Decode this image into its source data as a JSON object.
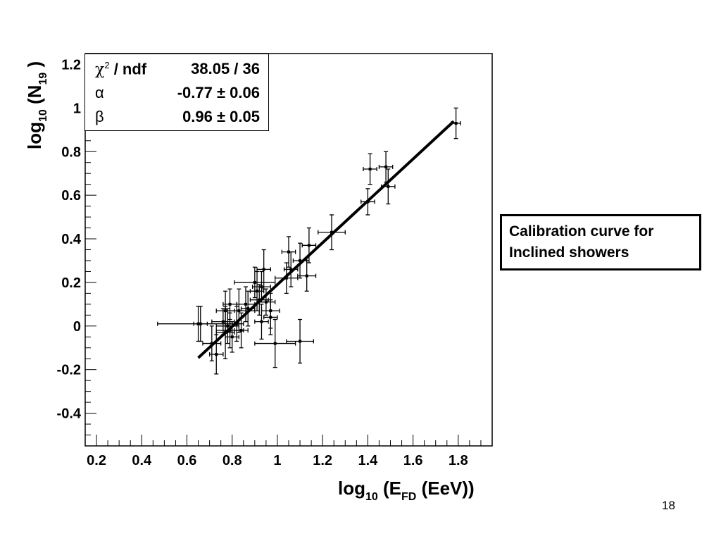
{
  "chart_data": {
    "type": "scatter",
    "xlabel": "log10 (EFD (EeV))",
    "ylabel": "log10 (N19 )",
    "xlim": [
      0.15,
      1.95
    ],
    "ylim": [
      -0.55,
      1.25
    ],
    "x_ticks": [
      0.2,
      0.4,
      0.6,
      0.8,
      1,
      1.2,
      1.4,
      1.6,
      1.8
    ],
    "x_tick_labels": [
      "0.2",
      "0.4",
      "0.6",
      "0.8",
      "1",
      "1.2",
      "1.4",
      "1.6",
      "1.8"
    ],
    "y_ticks": [
      -0.4,
      -0.2,
      0,
      0.2,
      0.4,
      0.6,
      0.8,
      1,
      1.2
    ],
    "y_tick_labels": [
      "-0.4",
      "-0.2",
      "0",
      "0.2",
      "0.4",
      "0.6",
      "0.8",
      "1",
      "1.2"
    ],
    "grid": false,
    "series": [
      {
        "points": [
          {
            "x": 0.65,
            "y": 0.01,
            "ex": 0.18,
            "ey": 0.08
          },
          {
            "x": 0.66,
            "y": 0.01,
            "ex": 0.03,
            "ey": 0.08
          },
          {
            "x": 0.71,
            "y": -0.08,
            "ex": 0.04,
            "ey": 0.08
          },
          {
            "x": 0.73,
            "y": -0.13,
            "ex": 0.03,
            "ey": 0.09
          },
          {
            "x": 0.76,
            "y": 0.02,
            "ex": 0.05,
            "ey": 0.06
          },
          {
            "x": 0.77,
            "y": -0.03,
            "ex": 0.04,
            "ey": 0.12
          },
          {
            "x": 0.77,
            "y": 0.07,
            "ex": 0.04,
            "ey": 0.09
          },
          {
            "x": 0.78,
            "y": 0.0,
            "ex": 0.05,
            "ey": 0.08
          },
          {
            "x": 0.79,
            "y": -0.02,
            "ex": 0.06,
            "ey": 0.08
          },
          {
            "x": 0.79,
            "y": 0.1,
            "ex": 0.03,
            "ey": 0.07
          },
          {
            "x": 0.8,
            "y": -0.05,
            "ex": 0.03,
            "ey": 0.07
          },
          {
            "x": 0.82,
            "y": 0.01,
            "ex": 0.03,
            "ey": 0.08
          },
          {
            "x": 0.83,
            "y": 0.07,
            "ex": 0.07,
            "ey": 0.1
          },
          {
            "x": 0.84,
            "y": -0.02,
            "ex": 0.03,
            "ey": 0.08
          },
          {
            "x": 0.86,
            "y": 0.1,
            "ex": 0.04,
            "ey": 0.08
          },
          {
            "x": 0.87,
            "y": 0.08,
            "ex": 0.03,
            "ey": 0.08
          },
          {
            "x": 0.9,
            "y": 0.2,
            "ex": 0.09,
            "ey": 0.07
          },
          {
            "x": 0.91,
            "y": 0.16,
            "ex": 0.03,
            "ey": 0.09
          },
          {
            "x": 0.92,
            "y": 0.12,
            "ex": 0.04,
            "ey": 0.07
          },
          {
            "x": 0.93,
            "y": 0.02,
            "ex": 0.03,
            "ey": 0.08
          },
          {
            "x": 0.93,
            "y": 0.18,
            "ex": 0.04,
            "ey": 0.07
          },
          {
            "x": 0.94,
            "y": 0.26,
            "ex": 0.03,
            "ey": 0.09
          },
          {
            "x": 0.95,
            "y": 0.11,
            "ex": 0.04,
            "ey": 0.06
          },
          {
            "x": 0.97,
            "y": 0.04,
            "ex": 0.03,
            "ey": 0.08
          },
          {
            "x": 0.97,
            "y": 0.07,
            "ex": 0.04,
            "ey": 0.08
          },
          {
            "x": 0.99,
            "y": -0.08,
            "ex": 0.09,
            "ey": 0.11
          },
          {
            "x": 1.04,
            "y": 0.22,
            "ex": 0.05,
            "ey": 0.07
          },
          {
            "x": 1.05,
            "y": 0.34,
            "ex": 0.03,
            "ey": 0.07
          },
          {
            "x": 1.06,
            "y": 0.26,
            "ex": 0.03,
            "ey": 0.08
          },
          {
            "x": 1.1,
            "y": -0.07,
            "ex": 0.06,
            "ey": 0.1
          },
          {
            "x": 1.1,
            "y": 0.3,
            "ex": 0.03,
            "ey": 0.08
          },
          {
            "x": 1.13,
            "y": 0.23,
            "ex": 0.04,
            "ey": 0.07
          },
          {
            "x": 1.14,
            "y": 0.37,
            "ex": 0.03,
            "ey": 0.08
          },
          {
            "x": 1.24,
            "y": 0.43,
            "ex": 0.06,
            "ey": 0.08
          },
          {
            "x": 1.4,
            "y": 0.57,
            "ex": 0.03,
            "ey": 0.06
          },
          {
            "x": 1.41,
            "y": 0.72,
            "ex": 0.03,
            "ey": 0.07
          },
          {
            "x": 1.48,
            "y": 0.73,
            "ex": 0.03,
            "ey": 0.07
          },
          {
            "x": 1.49,
            "y": 0.64,
            "ex": 0.03,
            "ey": 0.08
          },
          {
            "x": 1.79,
            "y": 0.93,
            "ex": 0.02,
            "ey": 0.07
          }
        ]
      }
    ],
    "fit_line": {
      "x": [
        0.65,
        1.78
      ],
      "y": [
        -0.146,
        0.939
      ]
    },
    "fit_stats": [
      {
        "param": "χ2 / ndf",
        "value": "38.05 / 36"
      },
      {
        "param": "α",
        "value": "-0.77 ± 0.06"
      },
      {
        "param": "β",
        "value": "0.96 ± 0.05"
      }
    ],
    "legend_placement": "top-left"
  },
  "annotation": {
    "line1": "Calibration curve for",
    "line2": "Inclined showers"
  },
  "page_number": "18",
  "labels": {
    "x_main": "log",
    "x_sub": "10",
    "x_rest": " (E",
    "x_sub2": "FD",
    "x_end": " (EeV))",
    "y_main": "log",
    "y_sub": "10",
    "y_rest": " (N",
    "y_sub2": "19",
    "y_end": " )",
    "chi_sym": "χ",
    "chi_sup": "2",
    "chi_rest": " / ndf",
    "alpha_sym": "α",
    "beta_sym": "β"
  }
}
